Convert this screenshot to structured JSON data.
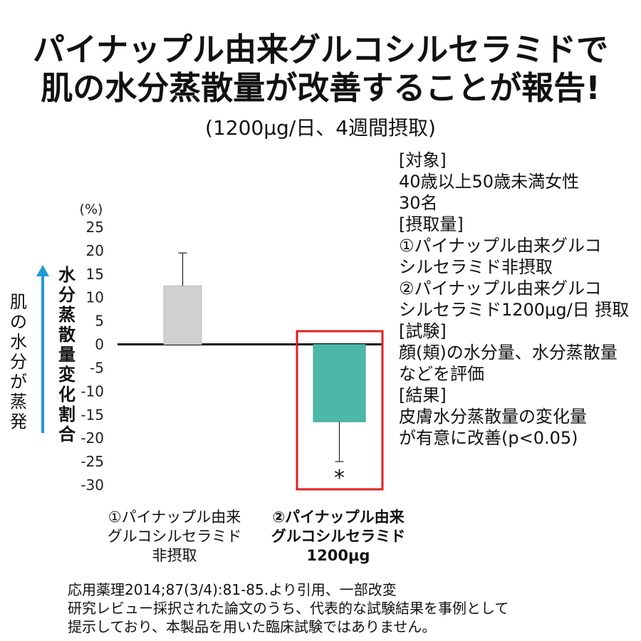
{
  "title_line1": "パイナップル由来グルコシルセラミドで",
  "title_line2": "肌の水分蒸散量が改善することが報告!",
  "subtitle": "(1200μg/日、4週間摂取)",
  "arrow_label": "肌の水分が蒸発",
  "info": [
    "[対象]",
    "40歳以上50歳未満女性",
    "30名",
    "[摂取量]",
    "①パイナップル由来グルコ",
    "シルセラミド非摂取",
    "②パイナップル由来グルコ",
    "シルセラミド1200μg/日 摂取",
    "[試験]",
    "顔(頬)の水分量、水分蒸散量",
    "などを評価",
    "[結果]",
    "皮膚水分蒸散量の変化量",
    "が有意に改善(p<0.05)"
  ],
  "footnote": [
    "応用薬理2014;87(3/4):81-85.より引用、一部改変",
    "研究レビュー採択された論文のうち、代表的な試験結果を事例として",
    "提示しており、本製品を用いた臨床試験ではありません。"
  ],
  "colors": {
    "bar1": "#d0d0d0",
    "bar2": "#4db8a8",
    "highlight_box": "#e02020",
    "arrow": "#1e9ad6"
  },
  "chart_data": {
    "type": "bar",
    "ylabel": "水分蒸散量変化割合",
    "unit": "(%)",
    "ylim": [
      -30,
      25
    ],
    "yticks": [
      25,
      20,
      15,
      10,
      5,
      0,
      -5,
      -10,
      -15,
      -20,
      -25,
      -30
    ],
    "categories": [
      [
        "①パイナップル由来",
        "グルコシルセラミド",
        "非摂取"
      ],
      [
        "②パイナップル由来",
        "グルコシルセラミド",
        "1200μg"
      ]
    ],
    "values": [
      12.5,
      -16.5
    ],
    "errors": [
      7,
      8.5
    ],
    "significance": [
      "",
      "*"
    ],
    "highlight_index": 1
  }
}
